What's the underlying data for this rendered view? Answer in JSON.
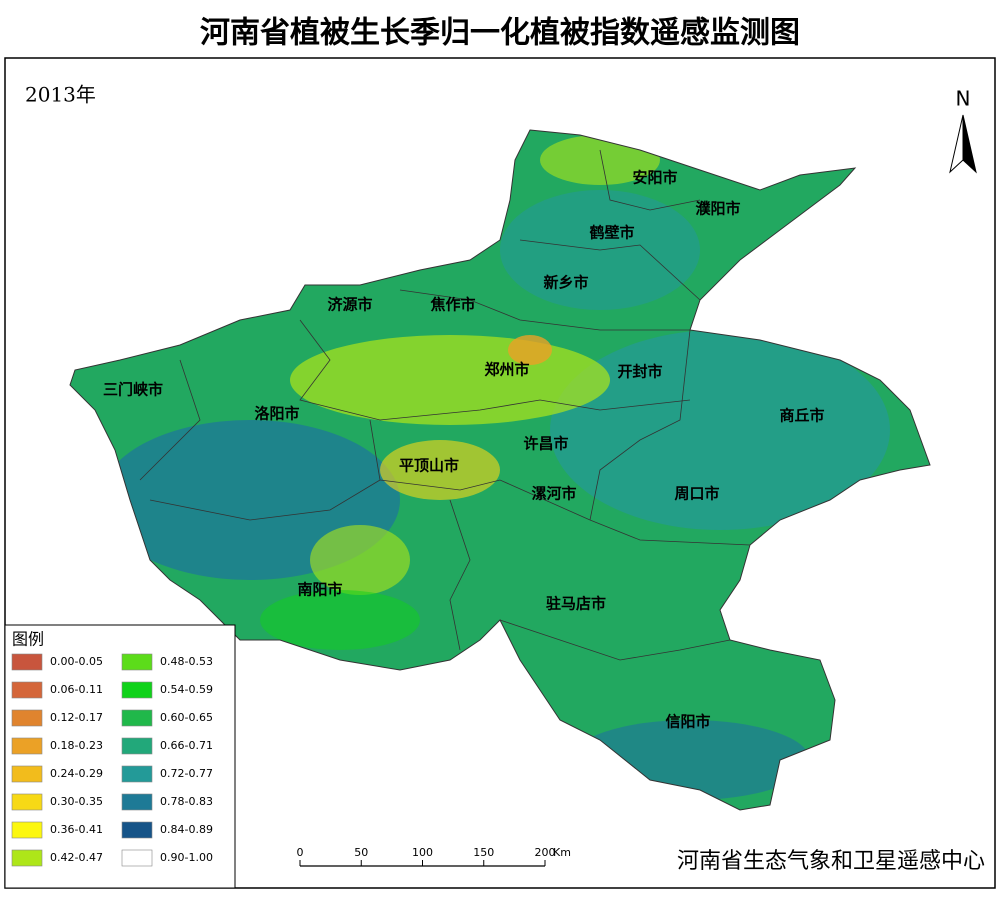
{
  "title": "河南省植被生长季归一化植被指数遥感监测图",
  "year": "2013年",
  "north": "N",
  "cities": [
    "安阳市",
    "濮阳市",
    "鹤壁市",
    "新乡市",
    "济源市",
    "焦作市",
    "郑州市",
    "开封市",
    "三门峡市",
    "洛阳市",
    "商丘市",
    "许昌市",
    "平顶山市",
    "漯河市",
    "周口市",
    "南阳市",
    "驻马店市",
    "信阳市"
  ],
  "legend": {
    "title": "图例",
    "items": [
      {
        "label": "0.00-0.05",
        "color": "#c8553d"
      },
      {
        "label": "0.06-0.11",
        "color": "#d4663a"
      },
      {
        "label": "0.12-0.17",
        "color": "#e0842e"
      },
      {
        "label": "0.18-0.23",
        "color": "#eba126"
      },
      {
        "label": "0.24-0.29",
        "color": "#f2bc1c"
      },
      {
        "label": "0.30-0.35",
        "color": "#f7d916"
      },
      {
        "label": "0.36-0.41",
        "color": "#fcf70f"
      },
      {
        "label": "0.42-0.47",
        "color": "#aee619"
      },
      {
        "label": "0.48-0.53",
        "color": "#5cdc1a"
      },
      {
        "label": "0.54-0.59",
        "color": "#10d21a"
      },
      {
        "label": "0.60-0.65",
        "color": "#20b84a"
      },
      {
        "label": "0.66-0.71",
        "color": "#22a87a"
      },
      {
        "label": "0.72-0.77",
        "color": "#239a98"
      },
      {
        "label": "0.78-0.83",
        "color": "#1e7a96"
      },
      {
        "label": "0.84-0.89",
        "color": "#165488"
      },
      {
        "label": "0.90-1.00",
        "color": "#ffffff"
      }
    ]
  },
  "scale_bar": {
    "ticks": [
      0,
      50,
      100,
      150,
      200
    ],
    "unit": "Km"
  },
  "credit": "河南省生态气象和卫星遥感中心"
}
